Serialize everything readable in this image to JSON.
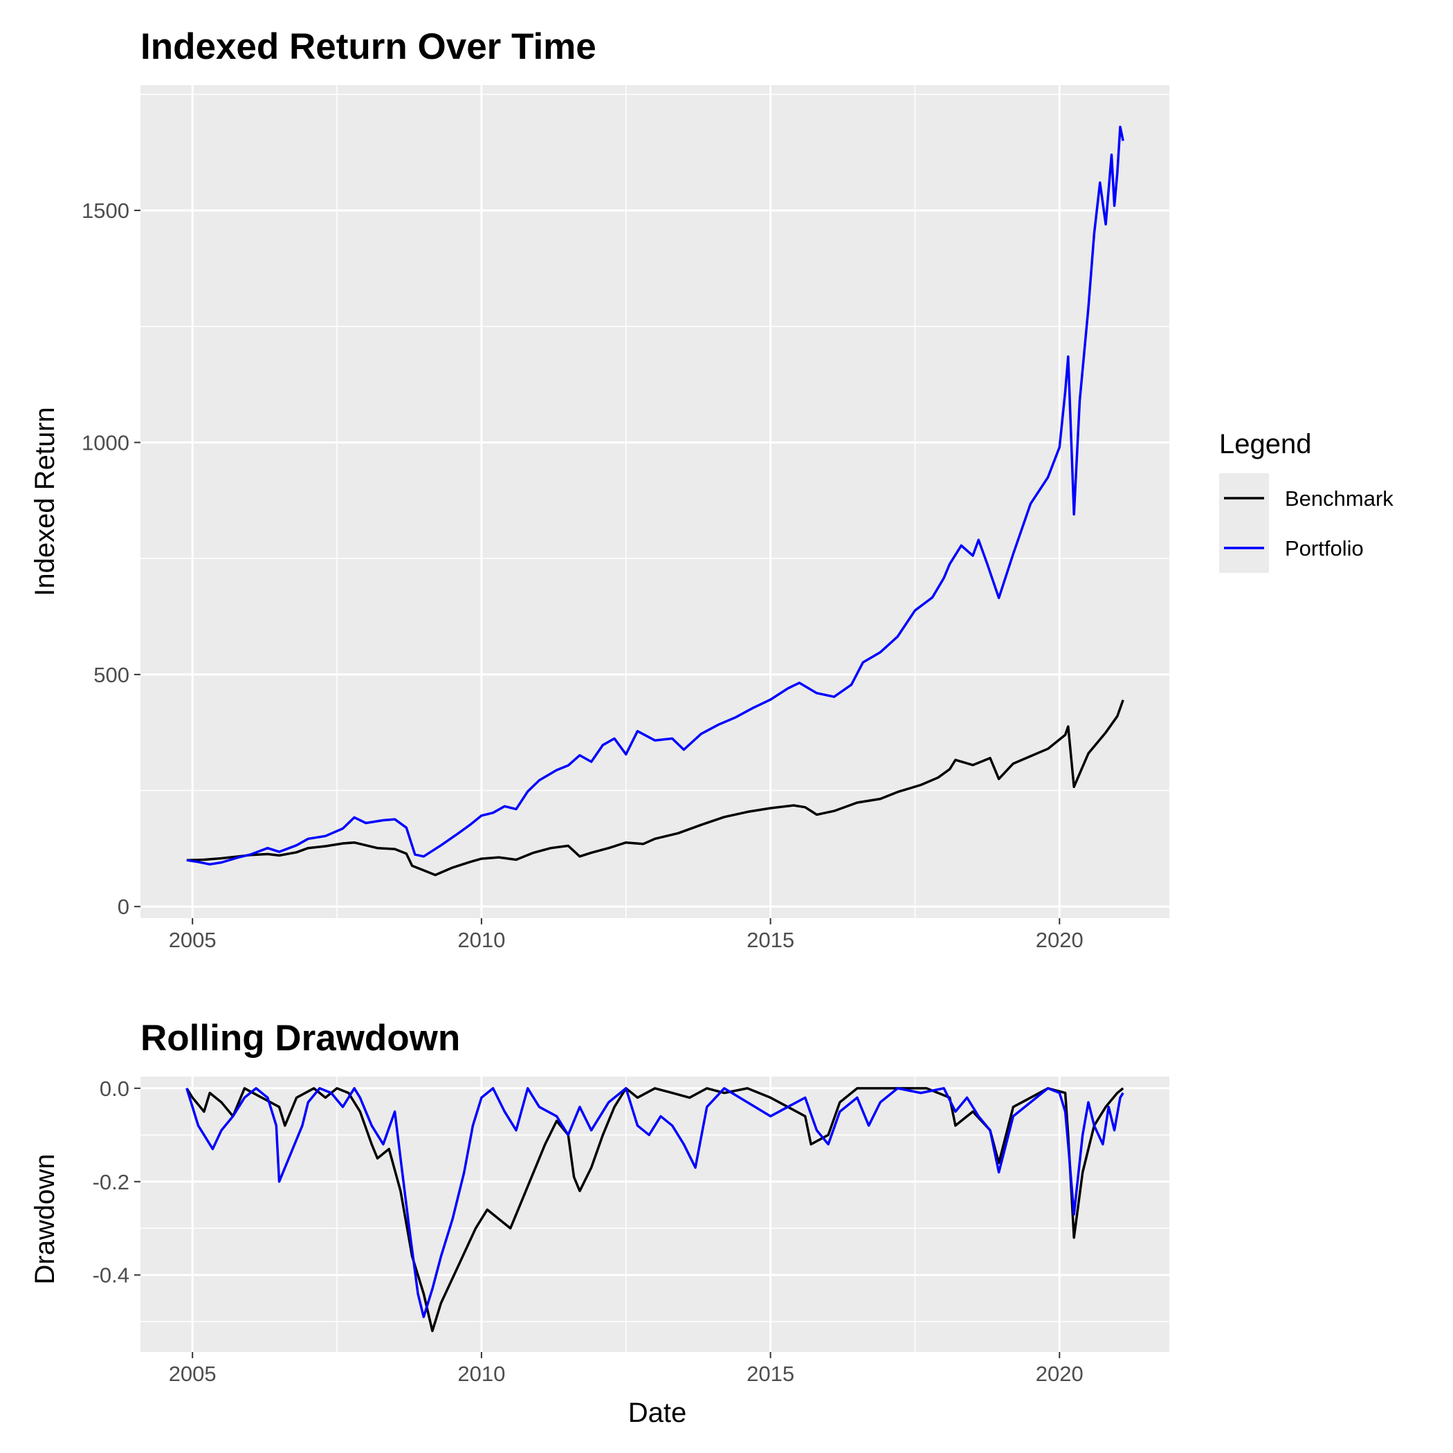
{
  "chart_data": [
    {
      "type": "line",
      "title": "Indexed Return Over Time",
      "xlabel": "",
      "ylabel": "Indexed Return",
      "xlim": [
        2004.1,
        2021.9
      ],
      "ylim": [
        -25,
        1770
      ],
      "x_ticks": [
        2005,
        2010,
        2015,
        2020
      ],
      "x_tick_labels": [
        "2005",
        "2010",
        "2015",
        "2020"
      ],
      "y_ticks": [
        0,
        500,
        1000,
        1500
      ],
      "y_tick_labels": [
        "0",
        "500",
        "1000",
        "1500"
      ],
      "grid": true,
      "legend": {
        "title": "Legend",
        "position": "right"
      },
      "series": [
        {
          "name": "Benchmark",
          "color": "#000000",
          "x": [
            2004.9,
            2005.2,
            2005.5,
            2005.8,
            2006.0,
            2006.3,
            2006.5,
            2006.8,
            2007.0,
            2007.3,
            2007.6,
            2007.8,
            2008.0,
            2008.2,
            2008.5,
            2008.7,
            2008.8,
            2009.0,
            2009.2,
            2009.5,
            2009.8,
            2010.0,
            2010.3,
            2010.6,
            2010.9,
            2011.2,
            2011.5,
            2011.7,
            2011.9,
            2012.2,
            2012.5,
            2012.8,
            2013.0,
            2013.4,
            2013.8,
            2014.2,
            2014.6,
            2015.0,
            2015.4,
            2015.6,
            2015.8,
            2016.1,
            2016.5,
            2016.9,
            2017.2,
            2017.6,
            2017.9,
            2018.1,
            2018.2,
            2018.5,
            2018.8,
            2018.95,
            2019.2,
            2019.5,
            2019.8,
            2020.1,
            2020.15,
            2020.25,
            2020.5,
            2020.8,
            2021.0,
            2021.1
          ],
          "y": [
            100,
            101,
            104,
            108,
            111,
            113,
            110,
            117,
            126,
            130,
            136,
            138,
            132,
            126,
            124,
            114,
            88,
            78,
            68,
            84,
            96,
            103,
            106,
            101,
            116,
            126,
            131,
            108,
            116,
            126,
            138,
            135,
            146,
            158,
            176,
            193,
            204,
            212,
            218,
            214,
            198,
            206,
            224,
            232,
            247,
            262,
            278,
            296,
            316,
            305,
            320,
            275,
            308,
            324,
            340,
            370,
            388,
            258,
            330,
            375,
            410,
            445
          ]
        },
        {
          "name": "Portfolio",
          "color": "#0000ff",
          "x": [
            2004.9,
            2005.1,
            2005.3,
            2005.5,
            2005.8,
            2006.0,
            2006.3,
            2006.5,
            2006.8,
            2007.0,
            2007.3,
            2007.6,
            2007.8,
            2008.0,
            2008.3,
            2008.5,
            2008.7,
            2008.85,
            2009.0,
            2009.3,
            2009.6,
            2009.8,
            2010.0,
            2010.2,
            2010.4,
            2010.6,
            2010.8,
            2011.0,
            2011.3,
            2011.5,
            2011.7,
            2011.9,
            2012.1,
            2012.3,
            2012.5,
            2012.7,
            2013.0,
            2013.3,
            2013.5,
            2013.8,
            2014.1,
            2014.4,
            2014.7,
            2015.0,
            2015.3,
            2015.5,
            2015.8,
            2016.1,
            2016.4,
            2016.6,
            2016.9,
            2017.2,
            2017.5,
            2017.8,
            2018.0,
            2018.1,
            2018.3,
            2018.5,
            2018.6,
            2018.75,
            2018.95,
            2019.2,
            2019.5,
            2019.8,
            2020.0,
            2020.1,
            2020.15,
            2020.25,
            2020.35,
            2020.5,
            2020.6,
            2020.7,
            2020.8,
            2020.9,
            2020.95,
            2021.0,
            2021.05,
            2021.1
          ],
          "y": [
            100,
            96,
            91,
            95,
            106,
            112,
            126,
            118,
            132,
            146,
            152,
            168,
            192,
            180,
            186,
            188,
            170,
            112,
            108,
            132,
            158,
            176,
            196,
            202,
            216,
            210,
            248,
            272,
            294,
            304,
            326,
            312,
            348,
            362,
            328,
            378,
            358,
            362,
            338,
            372,
            392,
            408,
            428,
            446,
            470,
            482,
            460,
            452,
            478,
            526,
            548,
            582,
            638,
            666,
            708,
            738,
            778,
            756,
            790,
            738,
            665,
            760,
            868,
            925,
            990,
            1110,
            1185,
            845,
            1090,
            1290,
            1450,
            1560,
            1470,
            1620,
            1510,
            1580,
            1680,
            1650
          ]
        }
      ]
    },
    {
      "type": "line",
      "title": "Rolling Drawdown",
      "xlabel": "Date",
      "ylabel": "Drawdown",
      "xlim": [
        2004.1,
        2021.9
      ],
      "ylim": [
        -0.565,
        0.025
      ],
      "x_ticks": [
        2005,
        2010,
        2015,
        2020
      ],
      "x_tick_labels": [
        "2005",
        "2010",
        "2015",
        "2020"
      ],
      "y_ticks": [
        0.0,
        -0.2,
        -0.4
      ],
      "y_tick_labels": [
        "0.0",
        "-0.2",
        "-0.4"
      ],
      "grid": true,
      "series": [
        {
          "name": "Benchmark",
          "color": "#000000",
          "x": [
            2004.9,
            2005.0,
            2005.2,
            2005.3,
            2005.5,
            2005.7,
            2005.9,
            2006.2,
            2006.5,
            2006.6,
            2006.8,
            2007.1,
            2007.3,
            2007.5,
            2007.7,
            2007.9,
            2008.1,
            2008.2,
            2008.4,
            2008.6,
            2008.8,
            2009.0,
            2009.15,
            2009.3,
            2009.6,
            2009.9,
            2010.1,
            2010.3,
            2010.5,
            2010.7,
            2010.9,
            2011.1,
            2011.3,
            2011.5,
            2011.6,
            2011.7,
            2011.9,
            2012.1,
            2012.3,
            2012.5,
            2012.7,
            2013.0,
            2013.3,
            2013.6,
            2013.9,
            2014.2,
            2014.6,
            2015.0,
            2015.3,
            2015.6,
            2015.7,
            2016.0,
            2016.2,
            2016.5,
            2016.9,
            2017.3,
            2017.7,
            2018.1,
            2018.2,
            2018.5,
            2018.8,
            2018.95,
            2019.2,
            2019.5,
            2019.8,
            2020.1,
            2020.15,
            2020.25,
            2020.4,
            2020.6,
            2020.8,
            2021.0,
            2021.1
          ],
          "y": [
            0.0,
            -0.02,
            -0.05,
            -0.01,
            -0.03,
            -0.06,
            0.0,
            -0.02,
            -0.04,
            -0.08,
            -0.02,
            0.0,
            -0.02,
            0.0,
            -0.01,
            -0.05,
            -0.12,
            -0.15,
            -0.13,
            -0.22,
            -0.36,
            -0.44,
            -0.52,
            -0.46,
            -0.38,
            -0.3,
            -0.26,
            -0.28,
            -0.3,
            -0.24,
            -0.18,
            -0.12,
            -0.07,
            -0.1,
            -0.19,
            -0.22,
            -0.17,
            -0.1,
            -0.04,
            0.0,
            -0.02,
            0.0,
            -0.01,
            -0.02,
            0.0,
            -0.01,
            0.0,
            -0.02,
            -0.04,
            -0.06,
            -0.12,
            -0.1,
            -0.03,
            0.0,
            0.0,
            0.0,
            0.0,
            -0.02,
            -0.08,
            -0.05,
            -0.09,
            -0.16,
            -0.04,
            -0.02,
            0.0,
            -0.01,
            -0.1,
            -0.32,
            -0.18,
            -0.08,
            -0.04,
            -0.01,
            0.0
          ]
        },
        {
          "name": "Portfolio",
          "color": "#0000ff",
          "x": [
            2004.9,
            2005.0,
            2005.1,
            2005.2,
            2005.35,
            2005.5,
            2005.7,
            2005.9,
            2006.1,
            2006.3,
            2006.45,
            2006.5,
            2006.7,
            2006.9,
            2007.0,
            2007.2,
            2007.4,
            2007.6,
            2007.8,
            2007.9,
            2008.1,
            2008.3,
            2008.5,
            2008.6,
            2008.75,
            2008.9,
            2009.0,
            2009.15,
            2009.3,
            2009.5,
            2009.7,
            2009.85,
            2010.0,
            2010.2,
            2010.4,
            2010.6,
            2010.8,
            2011.0,
            2011.3,
            2011.5,
            2011.7,
            2011.9,
            2012.2,
            2012.5,
            2012.7,
            2012.9,
            2013.1,
            2013.3,
            2013.5,
            2013.7,
            2013.9,
            2014.2,
            2014.6,
            2015.0,
            2015.3,
            2015.6,
            2015.8,
            2016.0,
            2016.2,
            2016.5,
            2016.7,
            2016.9,
            2017.2,
            2017.6,
            2018.0,
            2018.2,
            2018.4,
            2018.6,
            2018.8,
            2018.95,
            2019.2,
            2019.5,
            2019.8,
            2020.0,
            2020.1,
            2020.15,
            2020.25,
            2020.4,
            2020.5,
            2020.6,
            2020.75,
            2020.85,
            2020.95,
            2021.05,
            2021.1
          ],
          "y": [
            0.0,
            -0.04,
            -0.08,
            -0.1,
            -0.13,
            -0.09,
            -0.06,
            -0.02,
            0.0,
            -0.02,
            -0.08,
            -0.2,
            -0.14,
            -0.08,
            -0.03,
            0.0,
            -0.01,
            -0.04,
            0.0,
            -0.02,
            -0.08,
            -0.12,
            -0.05,
            -0.15,
            -0.3,
            -0.44,
            -0.49,
            -0.43,
            -0.36,
            -0.28,
            -0.18,
            -0.08,
            -0.02,
            0.0,
            -0.05,
            -0.09,
            0.0,
            -0.04,
            -0.06,
            -0.1,
            -0.04,
            -0.09,
            -0.03,
            0.0,
            -0.08,
            -0.1,
            -0.06,
            -0.08,
            -0.12,
            -0.17,
            -0.04,
            0.0,
            -0.03,
            -0.06,
            -0.04,
            -0.02,
            -0.09,
            -0.12,
            -0.05,
            -0.02,
            -0.08,
            -0.03,
            0.0,
            -0.01,
            0.0,
            -0.05,
            -0.02,
            -0.06,
            -0.09,
            -0.18,
            -0.06,
            -0.03,
            0.0,
            -0.01,
            -0.05,
            -0.12,
            -0.27,
            -0.1,
            -0.03,
            -0.08,
            -0.12,
            -0.04,
            -0.09,
            -0.02,
            -0.01
          ]
        }
      ]
    }
  ]
}
